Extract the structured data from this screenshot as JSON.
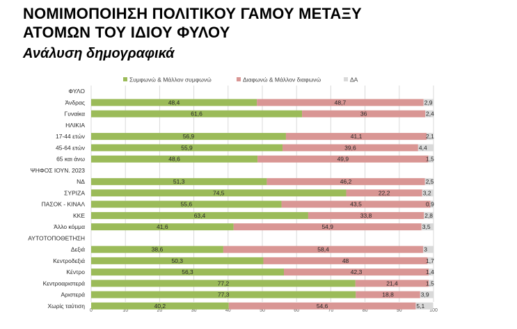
{
  "title_line1": "ΝΟΜΙΜΟΠΟΙΗΣΗ ΠΟΛΙΤΙΚΟΥ ΓΑΜΟΥ ΜΕΤΑΞΥ",
  "title_line2": "ΑΤΟΜΩΝ ΤΟΥ ΙΔΙΟΥ ΦΥΛΟΥ",
  "subtitle": "Ανάλυση δημογραφικά",
  "colors": {
    "agree": "#9bbb59",
    "disagree": "#d99694",
    "dk": "#d9d9d9",
    "grid": "#d9d9d9"
  },
  "chart_data": {
    "type": "bar",
    "orientation": "horizontal",
    "stacked": true,
    "series": [
      {
        "name": "Συμφωνώ & Μάλλον συμφωνώ",
        "values": [
          null,
          48.4,
          61.6,
          null,
          56.9,
          55.9,
          48.6,
          null,
          51.3,
          74.5,
          55.6,
          63.4,
          41.6,
          null,
          38.6,
          50.3,
          56.3,
          77.2,
          77.3,
          40.2
        ]
      },
      {
        "name": "Διαφωνώ & Μάλλον διαφωνώ",
        "values": [
          null,
          48.7,
          36,
          null,
          41.1,
          39.6,
          49.9,
          null,
          46.2,
          22.2,
          43.5,
          33.8,
          54.9,
          null,
          58.4,
          48,
          42.3,
          21.4,
          18.8,
          54.6
        ]
      },
      {
        "name": "ΔΑ",
        "values": [
          null,
          2.9,
          2.4,
          null,
          2.1,
          4.4,
          1.5,
          null,
          2.5,
          3.2,
          0.9,
          2.8,
          3.5,
          null,
          3,
          1.7,
          1.4,
          1.5,
          3.9,
          5.1
        ]
      }
    ],
    "value_labels": [
      [
        "",
        "48,4",
        "61,6",
        "",
        "56,9",
        "55,9",
        "48,6",
        "",
        "51,3",
        "74,5",
        "55,6",
        "63,4",
        "41,6",
        "",
        "38,6",
        "50,3",
        "56,3",
        "77,2",
        "77,3",
        "40,2"
      ],
      [
        "",
        "48,7",
        "36",
        "",
        "41,1",
        "39,6",
        "49,9",
        "",
        "46,2",
        "22,2",
        "43,5",
        "33,8",
        "54,9",
        "",
        "58,4",
        "48",
        "42,3",
        "21,4",
        "18,8",
        "54,6"
      ],
      [
        "",
        "2,9",
        "2,4",
        "",
        "2,1",
        "4,4",
        "1,5",
        "",
        "2,5",
        "3,2",
        "0,9",
        "2,8",
        "3,5",
        "",
        "3",
        "1,7",
        "1,4",
        "1,5",
        "3,9",
        "5,1"
      ]
    ],
    "categories": [
      "ΦΥΛΟ",
      "Άνδρας",
      "Γυναίκα",
      "ΗΛΙΚΙΑ",
      "17-44 ετών",
      "45-64 ετών",
      "65 και άνω",
      "ΨΗΦΟΣ ΙΟΥΝ. 2023",
      "ΝΔ",
      "ΣΥΡΙΖΑ",
      "ΠΑΣΟΚ - ΚΙΝΑΛ",
      "ΚΚΕ",
      "Άλλο κόμμα",
      "ΑΥΤΟΤΟΠΟΘΕΤΗΣΗ",
      "Δεξιά",
      "Κεντροδεξιά",
      "Κέντρο",
      "Κεντροαριστερά",
      "Αριστερά",
      "Χωρίς ταύτιση"
    ],
    "xlim": [
      0,
      100
    ],
    "xticks": [
      "0",
      "10",
      "20",
      "30",
      "40",
      "50",
      "60",
      "70",
      "80",
      "90",
      "100"
    ],
    "grid": true,
    "legend_position": "top"
  }
}
